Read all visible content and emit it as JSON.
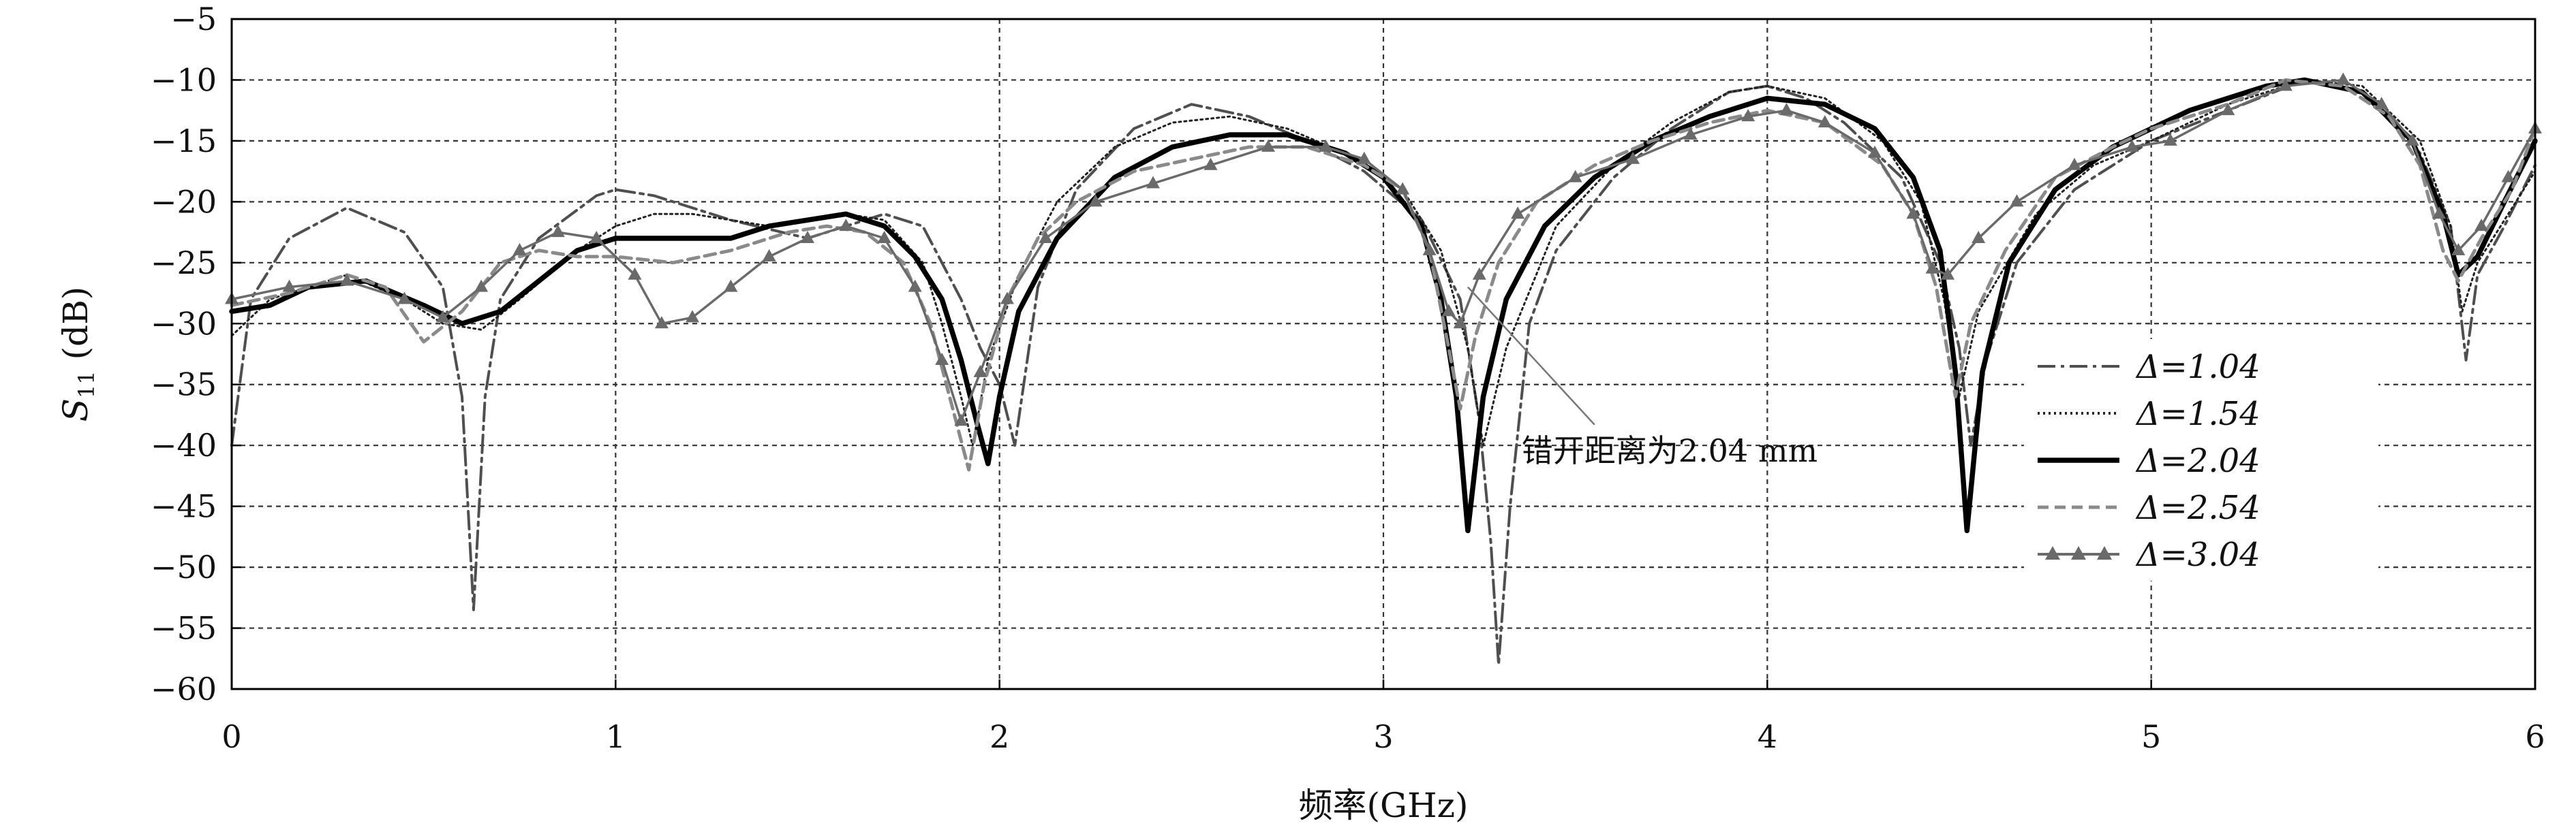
{
  "chart_data": {
    "type": "line",
    "xlabel": "频率(GHz)",
    "ylabel": {
      "base": "S",
      "sub": "11",
      "unit": " (dB)"
    },
    "xlim": [
      0,
      6
    ],
    "ylim": [
      -60,
      -5
    ],
    "x_ticks": [
      "0",
      "1",
      "2",
      "3",
      "4",
      "5",
      "6"
    ],
    "y_ticks": [
      "−5",
      "−10",
      "−15",
      "−20",
      "−25",
      "−30",
      "−35",
      "−40",
      "−45",
      "−50",
      "−55",
      "−60"
    ],
    "grid": true,
    "legend_position": "right",
    "annotation": {
      "text": "错开距离为2.04 mm",
      "points_to": {
        "x": 3.22,
        "y": -27
      }
    },
    "series": [
      {
        "name": "Δ=1.04",
        "label": "Δ=1.04",
        "color": "#4f4f4f",
        "style": "dashdot",
        "points": [
          [
            0,
            -40
          ],
          [
            0.05,
            -28
          ],
          [
            0.15,
            -23
          ],
          [
            0.3,
            -20.5
          ],
          [
            0.45,
            -22.5
          ],
          [
            0.55,
            -27
          ],
          [
            0.6,
            -36
          ],
          [
            0.63,
            -53.5
          ],
          [
            0.66,
            -36
          ],
          [
            0.7,
            -28
          ],
          [
            0.8,
            -23
          ],
          [
            0.95,
            -19.5
          ],
          [
            1.0,
            -19
          ],
          [
            1.1,
            -19.5
          ],
          [
            1.3,
            -21.5
          ],
          [
            1.5,
            -23
          ],
          [
            1.7,
            -21
          ],
          [
            1.8,
            -22
          ],
          [
            1.9,
            -28
          ],
          [
            1.95,
            -32
          ],
          [
            2.0,
            -35
          ],
          [
            2.04,
            -40
          ],
          [
            2.1,
            -27
          ],
          [
            2.2,
            -19
          ],
          [
            2.35,
            -14
          ],
          [
            2.5,
            -12
          ],
          [
            2.65,
            -13
          ],
          [
            2.8,
            -15
          ],
          [
            2.95,
            -17.5
          ],
          [
            3.1,
            -21.5
          ],
          [
            3.2,
            -28
          ],
          [
            3.25,
            -38
          ],
          [
            3.28,
            -48
          ],
          [
            3.3,
            -58
          ],
          [
            3.33,
            -45
          ],
          [
            3.38,
            -30
          ],
          [
            3.45,
            -24
          ],
          [
            3.6,
            -18
          ],
          [
            3.75,
            -14
          ],
          [
            3.9,
            -11
          ],
          [
            4.0,
            -10.5
          ],
          [
            4.1,
            -11.5
          ],
          [
            4.2,
            -13.5
          ],
          [
            4.35,
            -18
          ],
          [
            4.45,
            -25
          ],
          [
            4.5,
            -32
          ],
          [
            4.53,
            -40
          ],
          [
            4.57,
            -33
          ],
          [
            4.65,
            -25
          ],
          [
            4.8,
            -19
          ],
          [
            5.0,
            -15
          ],
          [
            5.2,
            -12.5
          ],
          [
            5.4,
            -10
          ],
          [
            5.55,
            -11
          ],
          [
            5.7,
            -16
          ],
          [
            5.78,
            -22
          ],
          [
            5.82,
            -33
          ],
          [
            5.85,
            -26
          ],
          [
            5.92,
            -22
          ],
          [
            6.0,
            -17
          ]
        ]
      },
      {
        "name": "Δ=1.54",
        "label": "Δ=1.54",
        "color": "#222222",
        "style": "dotted",
        "points": [
          [
            0,
            -31
          ],
          [
            0.1,
            -28
          ],
          [
            0.3,
            -26
          ],
          [
            0.45,
            -28
          ],
          [
            0.55,
            -30
          ],
          [
            0.65,
            -30.5
          ],
          [
            0.75,
            -28
          ],
          [
            0.9,
            -24
          ],
          [
            1.0,
            -22
          ],
          [
            1.1,
            -21
          ],
          [
            1.2,
            -21
          ],
          [
            1.4,
            -22
          ],
          [
            1.6,
            -21
          ],
          [
            1.7,
            -21.5
          ],
          [
            1.8,
            -25
          ],
          [
            1.85,
            -30
          ],
          [
            1.9,
            -36
          ],
          [
            1.93,
            -40
          ],
          [
            1.97,
            -33
          ],
          [
            2.05,
            -26
          ],
          [
            2.15,
            -20
          ],
          [
            2.3,
            -15.5
          ],
          [
            2.45,
            -13.5
          ],
          [
            2.6,
            -13
          ],
          [
            2.75,
            -14
          ],
          [
            2.9,
            -16
          ],
          [
            3.05,
            -19
          ],
          [
            3.15,
            -24
          ],
          [
            3.22,
            -32
          ],
          [
            3.26,
            -40
          ],
          [
            3.32,
            -32
          ],
          [
            3.45,
            -22
          ],
          [
            3.6,
            -17
          ],
          [
            3.75,
            -13.5
          ],
          [
            3.9,
            -11
          ],
          [
            4.0,
            -10.5
          ],
          [
            4.15,
            -11.5
          ],
          [
            4.3,
            -15
          ],
          [
            4.4,
            -20
          ],
          [
            4.46,
            -28
          ],
          [
            4.5,
            -36
          ],
          [
            4.55,
            -29
          ],
          [
            4.7,
            -21
          ],
          [
            4.85,
            -17
          ],
          [
            5.0,
            -15
          ],
          [
            5.2,
            -12
          ],
          [
            5.4,
            -10
          ],
          [
            5.55,
            -10.5
          ],
          [
            5.7,
            -15
          ],
          [
            5.78,
            -22
          ],
          [
            5.81,
            -29
          ],
          [
            5.85,
            -25
          ],
          [
            5.93,
            -21
          ],
          [
            6.0,
            -17.5
          ]
        ]
      },
      {
        "name": "Δ=2.04",
        "label": "Δ=2.04",
        "color": "#000000",
        "style": "solid",
        "points": [
          [
            0,
            -29
          ],
          [
            0.1,
            -28.5
          ],
          [
            0.2,
            -27
          ],
          [
            0.35,
            -26.5
          ],
          [
            0.5,
            -28.5
          ],
          [
            0.6,
            -30
          ],
          [
            0.7,
            -29
          ],
          [
            0.8,
            -26.5
          ],
          [
            0.9,
            -24
          ],
          [
            1.0,
            -23
          ],
          [
            1.1,
            -23
          ],
          [
            1.2,
            -23
          ],
          [
            1.3,
            -23
          ],
          [
            1.4,
            -22
          ],
          [
            1.5,
            -21.5
          ],
          [
            1.6,
            -21
          ],
          [
            1.7,
            -22
          ],
          [
            1.78,
            -24.5
          ],
          [
            1.85,
            -28
          ],
          [
            1.9,
            -33
          ],
          [
            1.94,
            -38
          ],
          [
            1.97,
            -41.5
          ],
          [
            2.0,
            -36
          ],
          [
            2.05,
            -29
          ],
          [
            2.15,
            -23
          ],
          [
            2.3,
            -18
          ],
          [
            2.45,
            -15.5
          ],
          [
            2.6,
            -14.5
          ],
          [
            2.75,
            -14.5
          ],
          [
            2.9,
            -16
          ],
          [
            3.0,
            -18
          ],
          [
            3.1,
            -22
          ],
          [
            3.15,
            -28
          ],
          [
            3.19,
            -36
          ],
          [
            3.22,
            -47
          ],
          [
            3.26,
            -36
          ],
          [
            3.32,
            -28
          ],
          [
            3.42,
            -22
          ],
          [
            3.55,
            -18
          ],
          [
            3.7,
            -15
          ],
          [
            3.85,
            -13
          ],
          [
            4.0,
            -11.5
          ],
          [
            4.15,
            -12
          ],
          [
            4.28,
            -14
          ],
          [
            4.38,
            -18
          ],
          [
            4.45,
            -24
          ],
          [
            4.49,
            -34
          ],
          [
            4.52,
            -47
          ],
          [
            4.56,
            -34
          ],
          [
            4.63,
            -25
          ],
          [
            4.75,
            -19
          ],
          [
            4.9,
            -15.5
          ],
          [
            5.1,
            -12.5
          ],
          [
            5.3,
            -10.5
          ],
          [
            5.4,
            -10
          ],
          [
            5.55,
            -11
          ],
          [
            5.68,
            -15
          ],
          [
            5.76,
            -21
          ],
          [
            5.8,
            -26
          ],
          [
            5.85,
            -24.5
          ],
          [
            5.92,
            -20
          ],
          [
            6.0,
            -15
          ]
        ]
      },
      {
        "name": "Δ=2.54",
        "label": "Δ=2.54",
        "color": "#8a8a8a",
        "style": "dashed",
        "points": [
          [
            0,
            -28.5
          ],
          [
            0.15,
            -27.5
          ],
          [
            0.3,
            -26
          ],
          [
            0.4,
            -27
          ],
          [
            0.5,
            -31.5
          ],
          [
            0.6,
            -29
          ],
          [
            0.7,
            -25
          ],
          [
            0.8,
            -24
          ],
          [
            0.9,
            -24.5
          ],
          [
            1.0,
            -24.5
          ],
          [
            1.15,
            -25
          ],
          [
            1.3,
            -24
          ],
          [
            1.45,
            -22.5
          ],
          [
            1.55,
            -22
          ],
          [
            1.65,
            -22.5
          ],
          [
            1.75,
            -25
          ],
          [
            1.82,
            -30
          ],
          [
            1.87,
            -36
          ],
          [
            1.92,
            -42
          ],
          [
            1.96,
            -35
          ],
          [
            2.02,
            -28
          ],
          [
            2.1,
            -23
          ],
          [
            2.2,
            -20
          ],
          [
            2.35,
            -17.5
          ],
          [
            2.5,
            -16.5
          ],
          [
            2.65,
            -15.5
          ],
          [
            2.8,
            -15.5
          ],
          [
            2.95,
            -17
          ],
          [
            3.05,
            -19
          ],
          [
            3.12,
            -24
          ],
          [
            3.17,
            -32
          ],
          [
            3.2,
            -37
          ],
          [
            3.24,
            -31
          ],
          [
            3.3,
            -25
          ],
          [
            3.4,
            -20
          ],
          [
            3.55,
            -17
          ],
          [
            3.7,
            -15
          ],
          [
            3.85,
            -13.5
          ],
          [
            4.0,
            -12.5
          ],
          [
            4.15,
            -13.5
          ],
          [
            4.3,
            -17
          ],
          [
            4.38,
            -21
          ],
          [
            4.44,
            -27
          ],
          [
            4.49,
            -36
          ],
          [
            4.53,
            -30
          ],
          [
            4.62,
            -24
          ],
          [
            4.75,
            -18
          ],
          [
            4.9,
            -15.5
          ],
          [
            5.0,
            -14
          ],
          [
            5.2,
            -12
          ],
          [
            5.35,
            -10
          ],
          [
            5.5,
            -10.5
          ],
          [
            5.62,
            -13
          ],
          [
            5.7,
            -17
          ],
          [
            5.76,
            -24
          ],
          [
            5.8,
            -26.5
          ],
          [
            5.86,
            -23
          ],
          [
            5.94,
            -19
          ],
          [
            6.0,
            -14
          ]
        ]
      },
      {
        "name": "Δ=3.04",
        "label": "Δ=3.04",
        "color": "#6a6a6a",
        "style": "triangle",
        "points": [
          [
            0,
            -28
          ],
          [
            0.15,
            -27
          ],
          [
            0.3,
            -26.5
          ],
          [
            0.45,
            -28
          ],
          [
            0.55,
            -29.5
          ],
          [
            0.65,
            -27
          ],
          [
            0.75,
            -24
          ],
          [
            0.85,
            -22.5
          ],
          [
            0.95,
            -23
          ],
          [
            1.05,
            -26
          ],
          [
            1.12,
            -30
          ],
          [
            1.2,
            -29.5
          ],
          [
            1.3,
            -27
          ],
          [
            1.4,
            -24.5
          ],
          [
            1.5,
            -23
          ],
          [
            1.6,
            -22
          ],
          [
            1.7,
            -23
          ],
          [
            1.78,
            -27
          ],
          [
            1.85,
            -33
          ],
          [
            1.9,
            -38
          ],
          [
            1.95,
            -34
          ],
          [
            2.02,
            -28
          ],
          [
            2.12,
            -23
          ],
          [
            2.25,
            -20
          ],
          [
            2.4,
            -18.5
          ],
          [
            2.55,
            -17
          ],
          [
            2.7,
            -15.5
          ],
          [
            2.85,
            -15.5
          ],
          [
            2.95,
            -16.5
          ],
          [
            3.05,
            -19
          ],
          [
            3.12,
            -24
          ],
          [
            3.17,
            -29
          ],
          [
            3.2,
            -30
          ],
          [
            3.25,
            -26
          ],
          [
            3.35,
            -21
          ],
          [
            3.5,
            -18
          ],
          [
            3.65,
            -16.5
          ],
          [
            3.8,
            -14.5
          ],
          [
            3.95,
            -13
          ],
          [
            4.05,
            -12.5
          ],
          [
            4.15,
            -13.5
          ],
          [
            4.28,
            -16
          ],
          [
            4.38,
            -21
          ],
          [
            4.43,
            -25.5
          ],
          [
            4.47,
            -26
          ],
          [
            4.55,
            -23
          ],
          [
            4.65,
            -20
          ],
          [
            4.8,
            -17
          ],
          [
            4.95,
            -15.5
          ],
          [
            5.05,
            -15
          ],
          [
            5.2,
            -12.5
          ],
          [
            5.35,
            -10.5
          ],
          [
            5.5,
            -10
          ],
          [
            5.6,
            -12
          ],
          [
            5.68,
            -15
          ],
          [
            5.75,
            -21
          ],
          [
            5.8,
            -24
          ],
          [
            5.86,
            -22
          ],
          [
            5.93,
            -18
          ],
          [
            6.0,
            -14
          ]
        ]
      }
    ]
  }
}
